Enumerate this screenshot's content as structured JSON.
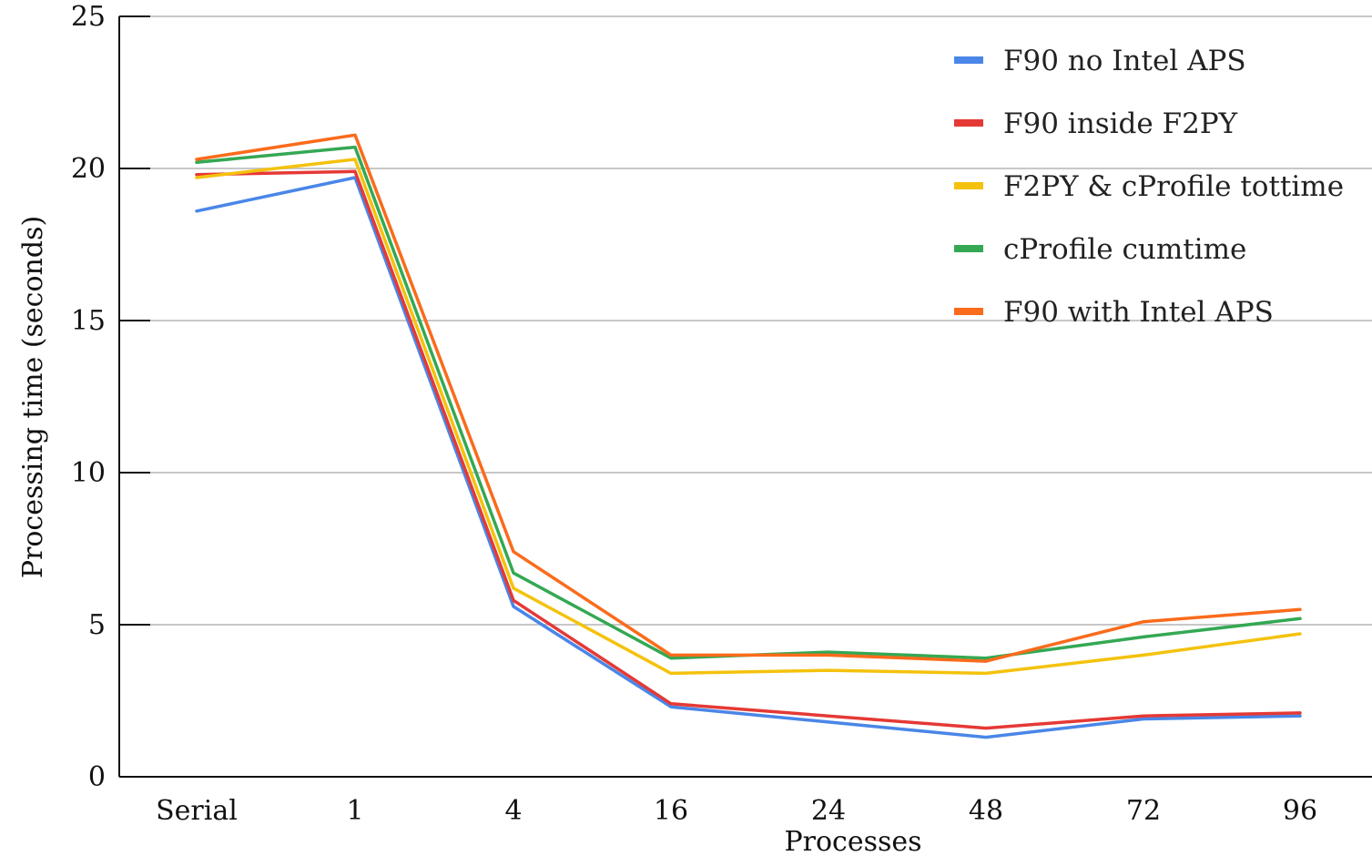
{
  "chart_data": {
    "type": "line",
    "title": "",
    "xlabel": "Processes",
    "ylabel": "Processing time (seconds)",
    "categories": [
      "Serial",
      "1",
      "4",
      "16",
      "24",
      "48",
      "72",
      "96"
    ],
    "ylim": [
      0,
      25
    ],
    "yticks": [
      0,
      5,
      10,
      15,
      20,
      25
    ],
    "grid": true,
    "legend_position": "top-right",
    "series": [
      {
        "name": "F90 no Intel APS",
        "color": "#4a86e8",
        "values": [
          18.6,
          19.7,
          5.6,
          2.3,
          1.8,
          1.3,
          1.9,
          2.0
        ]
      },
      {
        "name": "F90 inside F2PY",
        "color": "#e53935",
        "values": [
          19.8,
          19.9,
          5.8,
          2.4,
          2.0,
          1.6,
          2.0,
          2.1
        ]
      },
      {
        "name": "F2PY & cProfile tottime",
        "color": "#f4c20d",
        "values": [
          19.7,
          20.3,
          6.2,
          3.4,
          3.5,
          3.4,
          4.0,
          4.7
        ]
      },
      {
        "name": "cProfile cumtime",
        "color": "#34a853",
        "values": [
          20.2,
          20.7,
          6.7,
          3.9,
          4.1,
          3.9,
          4.6,
          5.2
        ]
      },
      {
        "name": "F90 with Intel APS",
        "color": "#fa6b1b",
        "values": [
          20.3,
          21.1,
          7.4,
          4.0,
          4.0,
          3.8,
          5.1,
          5.5
        ]
      }
    ]
  }
}
